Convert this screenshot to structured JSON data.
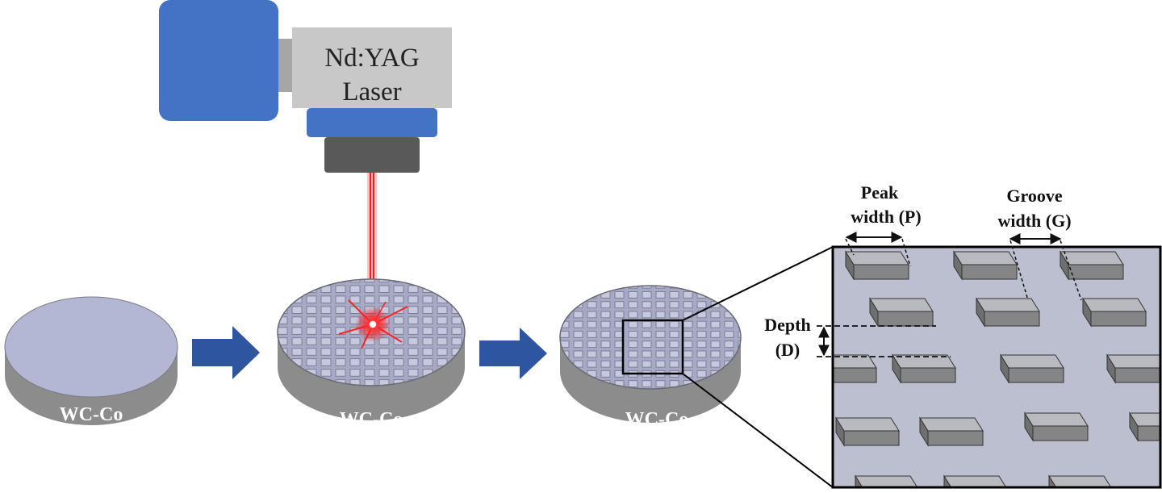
{
  "laser": {
    "line1": "Nd:YAG",
    "line2": "Laser"
  },
  "disks": [
    {
      "label": "WC-Co"
    },
    {
      "label": "WC-Co"
    },
    {
      "label": "WC-Co"
    }
  ],
  "annotations": {
    "peak_line1": "Peak",
    "peak_line2": "width (P)",
    "groove_line1": "Groove",
    "groove_line2": "width (G)",
    "depth_line1": "Depth",
    "depth_line2": "(D)"
  },
  "colors": {
    "laser_body": "#4472c4",
    "laser_head": "#c8c8c8",
    "laser_nozzle": "#595959",
    "beam": "#ff1a1a",
    "disk_top": "#b4b7d4",
    "disk_side": "#8c8c8c",
    "arrow": "#2e55a0",
    "surface": "#bcbfd0",
    "pillar_top": "#b9b9c0",
    "pillar_side": "#858585"
  }
}
